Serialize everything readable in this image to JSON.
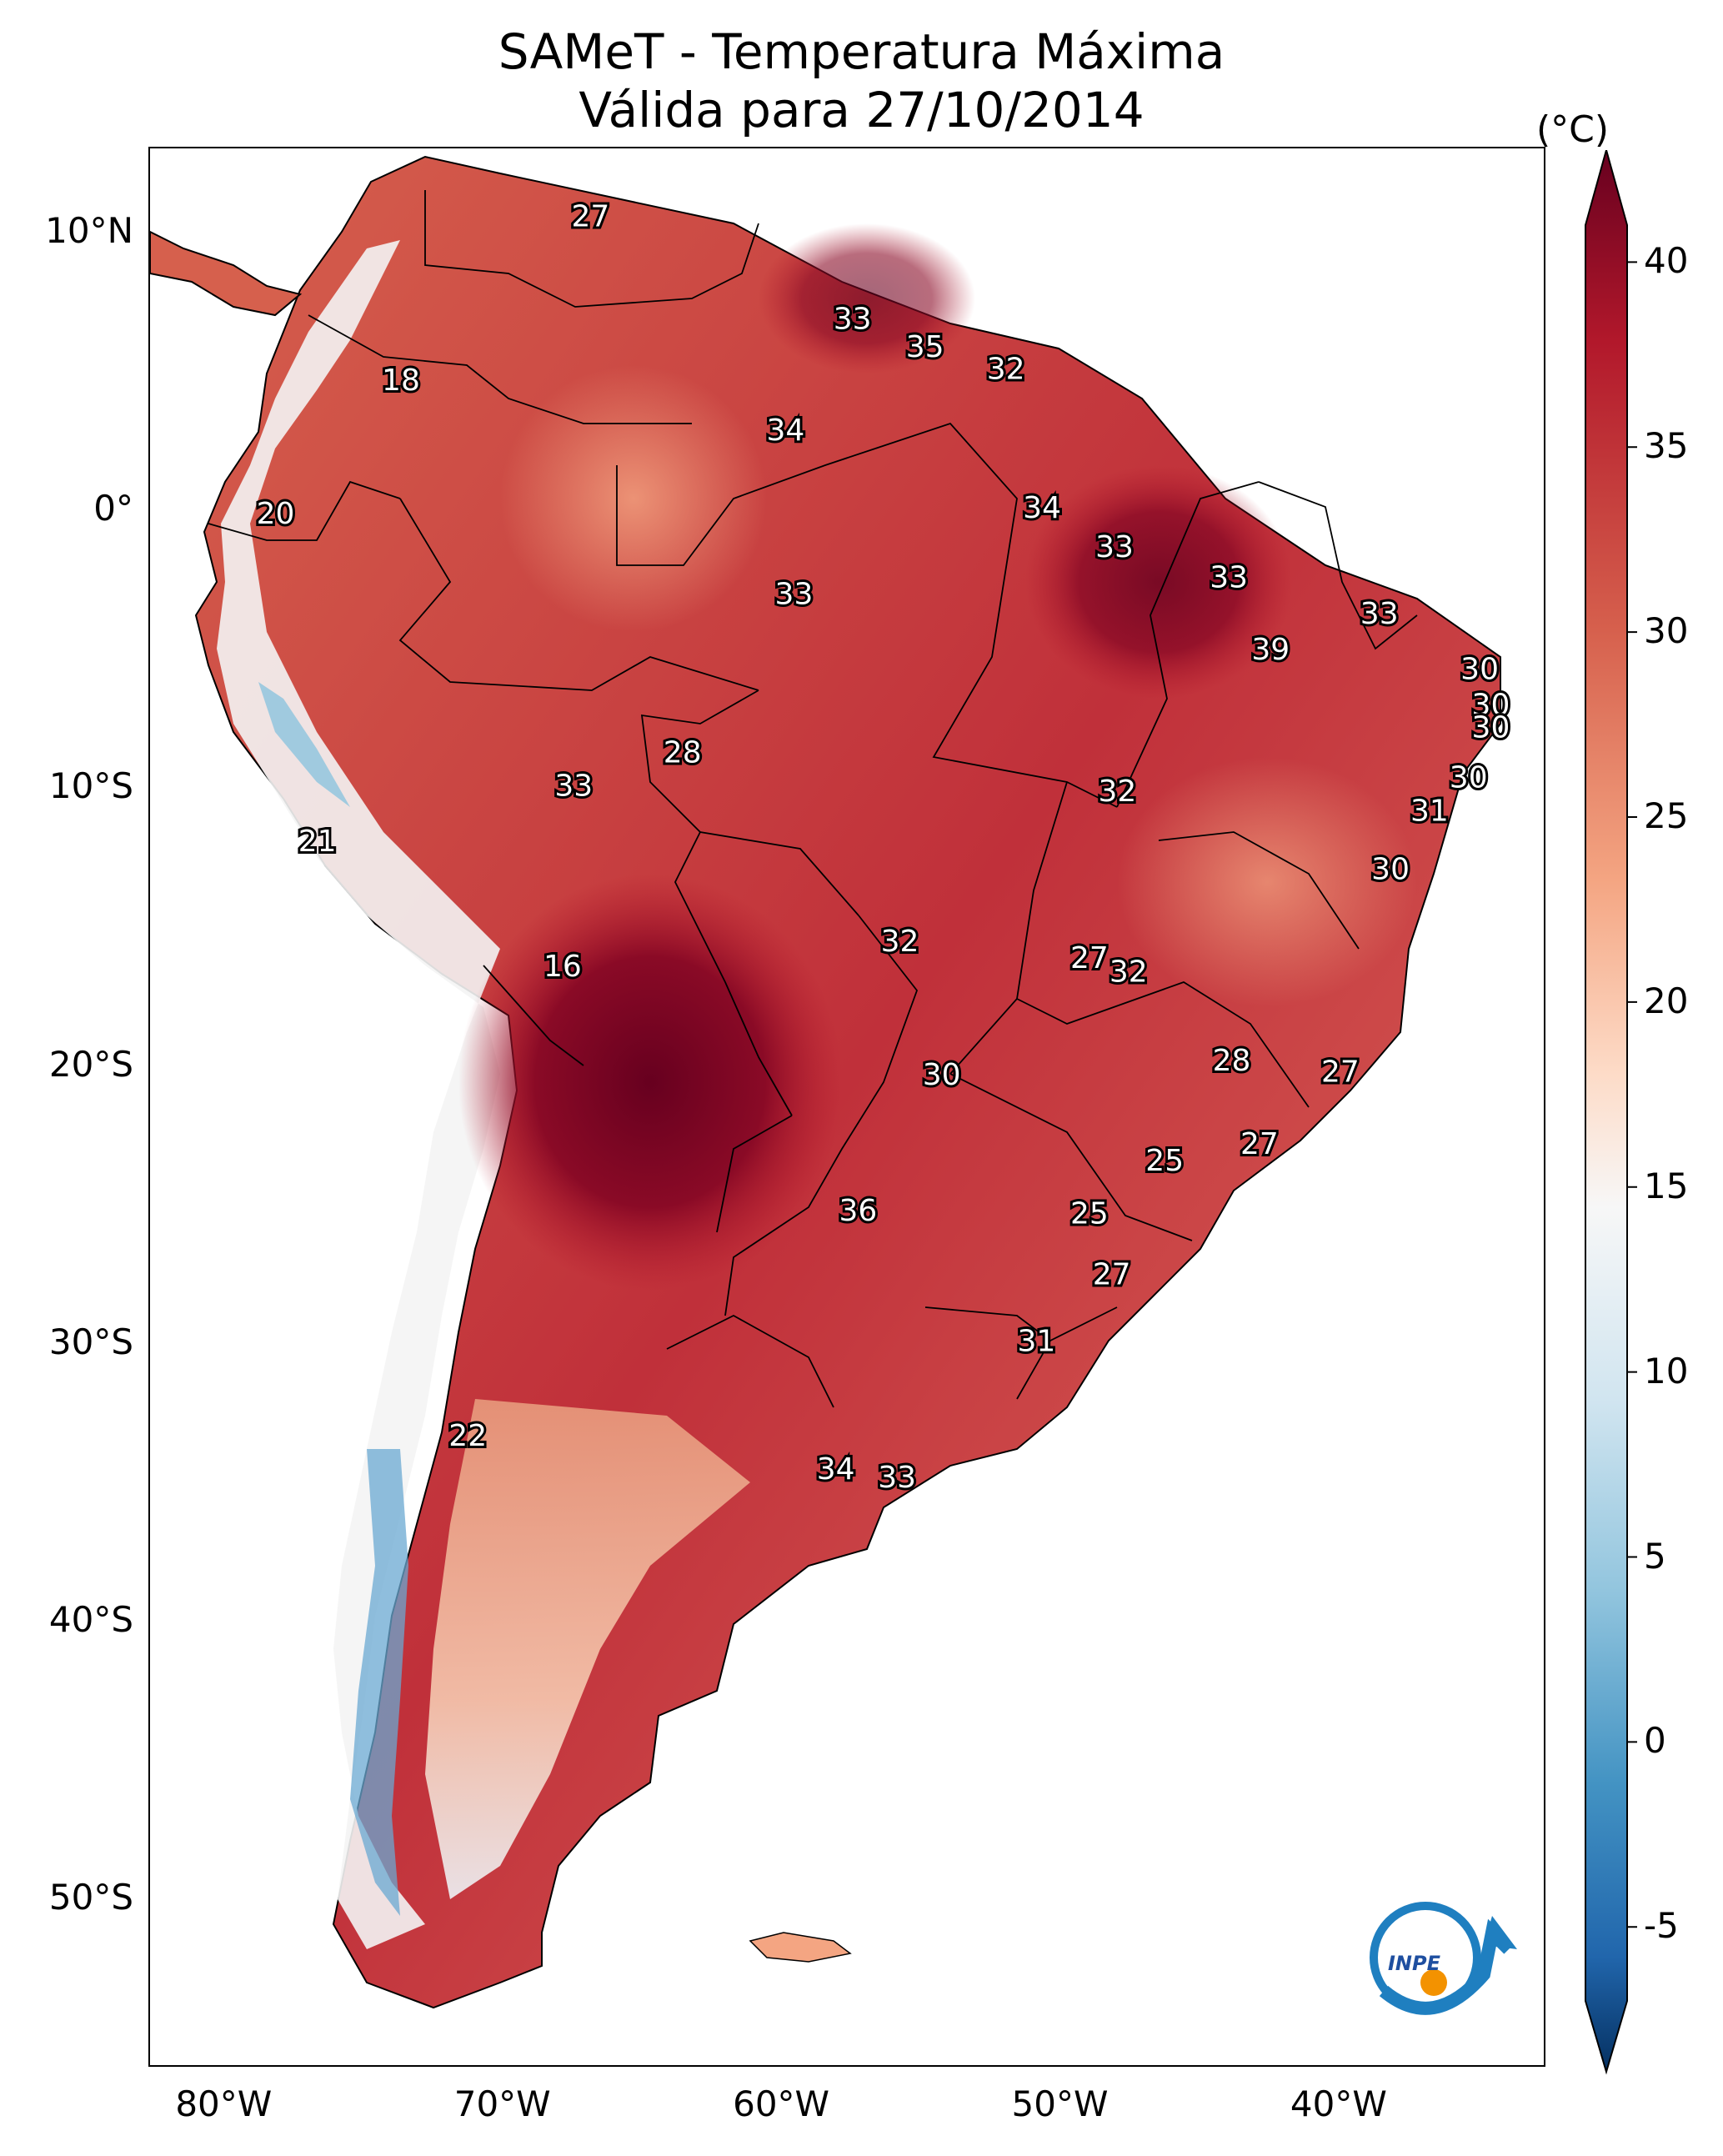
{
  "title_line1": "SAMeT - Temperatura Máxima",
  "title_line2": "Válida para 27/10/2014",
  "map": {
    "extent_lon": [
      -83,
      -33
    ],
    "extent_lat": [
      -56,
      13
    ],
    "lon_ticks": [
      "80°W",
      "70°W",
      "60°W",
      "50°W",
      "40°W"
    ],
    "lat_ticks": [
      "10°N",
      "0°",
      "10°S",
      "20°S",
      "30°S",
      "40°S",
      "50°S"
    ],
    "point_labels": [
      {
        "lon": -67.2,
        "lat": 10.5,
        "value": "27"
      },
      {
        "lon": -74.0,
        "lat": 4.6,
        "value": "18"
      },
      {
        "lon": -78.5,
        "lat": -0.2,
        "value": "20"
      },
      {
        "lon": -57.8,
        "lat": 6.8,
        "value": "33"
      },
      {
        "lon": -55.2,
        "lat": 5.8,
        "value": "35"
      },
      {
        "lon": -52.3,
        "lat": 5.0,
        "value": "32"
      },
      {
        "lon": -60.2,
        "lat": 2.8,
        "value": "34"
      },
      {
        "lon": -51.0,
        "lat": 0.0,
        "value": "34"
      },
      {
        "lon": -48.4,
        "lat": -1.4,
        "value": "33"
      },
      {
        "lon": -44.3,
        "lat": -2.5,
        "value": "33"
      },
      {
        "lon": -38.9,
        "lat": -3.8,
        "value": "33"
      },
      {
        "lon": -59.9,
        "lat": -3.1,
        "value": "33"
      },
      {
        "lon": -42.8,
        "lat": -5.1,
        "value": "39"
      },
      {
        "lon": -35.3,
        "lat": -5.8,
        "value": "30"
      },
      {
        "lon": -34.9,
        "lat": -7.1,
        "value": "30"
      },
      {
        "lon": -34.9,
        "lat": -7.9,
        "value": "30"
      },
      {
        "lon": -35.7,
        "lat": -9.7,
        "value": "30"
      },
      {
        "lon": -37.1,
        "lat": -10.9,
        "value": "31"
      },
      {
        "lon": -38.5,
        "lat": -13.0,
        "value": "30"
      },
      {
        "lon": -63.9,
        "lat": -8.8,
        "value": "28"
      },
      {
        "lon": -67.8,
        "lat": -10.0,
        "value": "33"
      },
      {
        "lon": -48.3,
        "lat": -10.2,
        "value": "32"
      },
      {
        "lon": -77.0,
        "lat": -12.0,
        "value": "21"
      },
      {
        "lon": -68.2,
        "lat": -16.5,
        "value": "16"
      },
      {
        "lon": -56.1,
        "lat": -15.6,
        "value": "32"
      },
      {
        "lon": -49.3,
        "lat": -16.2,
        "value": "27"
      },
      {
        "lon": -47.9,
        "lat": -16.7,
        "value": "32"
      },
      {
        "lon": -44.2,
        "lat": -19.9,
        "value": "28"
      },
      {
        "lon": -40.3,
        "lat": -20.3,
        "value": "27"
      },
      {
        "lon": -54.6,
        "lat": -20.4,
        "value": "30"
      },
      {
        "lon": -43.2,
        "lat": -22.9,
        "value": "27"
      },
      {
        "lon": -46.6,
        "lat": -23.5,
        "value": "25"
      },
      {
        "lon": -57.6,
        "lat": -25.3,
        "value": "36"
      },
      {
        "lon": -49.3,
        "lat": -25.4,
        "value": "25"
      },
      {
        "lon": -48.5,
        "lat": -27.6,
        "value": "27"
      },
      {
        "lon": -51.2,
        "lat": -30.0,
        "value": "31"
      },
      {
        "lon": -71.6,
        "lat": -33.4,
        "value": "22"
      },
      {
        "lon": -58.4,
        "lat": -34.6,
        "value": "34"
      },
      {
        "lon": -56.2,
        "lat": -34.9,
        "value": "33"
      }
    ]
  },
  "colorbar": {
    "unit": "(°C)",
    "tick_labels": [
      "40",
      "35",
      "30",
      "25",
      "20",
      "15",
      "10",
      "5",
      "0",
      "-5"
    ],
    "range": [
      -7,
      41
    ],
    "extend": "both",
    "colors": [
      "#053061",
      "#2166ac",
      "#4393c3",
      "#92c5de",
      "#d1e5f0",
      "#f7f7f7",
      "#fddbc7",
      "#f4a582",
      "#d6604d",
      "#b2182b",
      "#67001f"
    ]
  },
  "logo_text": "INPE"
}
